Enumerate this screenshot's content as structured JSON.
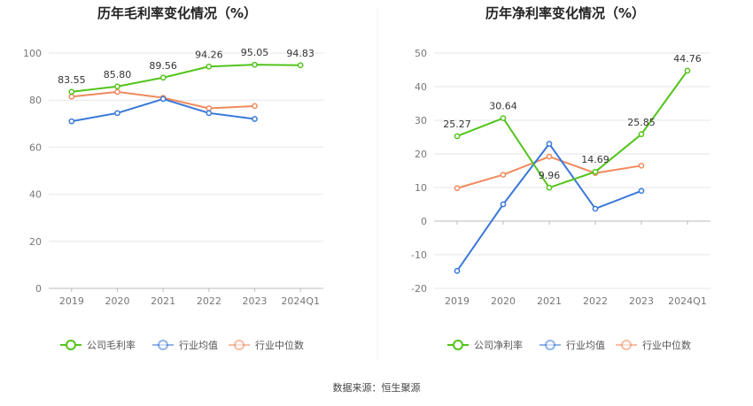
{
  "source": "数据来源：恒生聚源",
  "colors": {
    "company": "#52c41a",
    "avg": "#3a78d8",
    "median": "#f08a5d",
    "grid": "#e6e6ef",
    "axis": "#bbbbbb"
  },
  "chart_data": [
    {
      "type": "line",
      "title": "历年毛利率变化情况（%）",
      "categories": [
        "2019",
        "2020",
        "2021",
        "2022",
        "2023",
        "2024Q1"
      ],
      "ylim": [
        0,
        100
      ],
      "yticks": [
        "0",
        "20",
        "40",
        "60",
        "80",
        "100"
      ],
      "grid": true,
      "legend_position": "bottom",
      "series": [
        {
          "name": "公司毛利率",
          "key": "company",
          "values": [
            83.55,
            85.8,
            89.56,
            94.26,
            95.05,
            94.83
          ],
          "labels": [
            "83.55",
            "85.80",
            "89.56",
            "94.26",
            "95.05",
            "94.83"
          ]
        },
        {
          "name": "行业均值",
          "key": "avg",
          "values": [
            71.0,
            74.5,
            80.5,
            74.5,
            72.0,
            null
          ]
        },
        {
          "name": "行业中位数",
          "key": "median",
          "values": [
            81.5,
            83.5,
            81.0,
            76.5,
            77.5,
            null
          ]
        }
      ]
    },
    {
      "type": "line",
      "title": "历年净利率变化情况（%）",
      "categories": [
        "2019",
        "2020",
        "2021",
        "2022",
        "2023",
        "2024Q1"
      ],
      "ylim": [
        -20,
        50
      ],
      "yticks": [
        "-20",
        "-10",
        "0",
        "10",
        "20",
        "30",
        "40",
        "50"
      ],
      "grid": true,
      "legend_position": "bottom",
      "series": [
        {
          "name": "公司净利率",
          "key": "company",
          "values": [
            25.27,
            30.64,
            9.96,
            14.69,
            25.85,
            44.76
          ],
          "labels": [
            "25.27",
            "30.64",
            "9.96",
            "14.69",
            "25.85",
            "44.76"
          ]
        },
        {
          "name": "行业均值",
          "key": "avg",
          "values": [
            -14.8,
            5.0,
            23.0,
            3.7,
            9.0,
            null
          ]
        },
        {
          "name": "行业中位数",
          "key": "median",
          "values": [
            9.8,
            13.8,
            19.2,
            14.3,
            16.5,
            null
          ]
        }
      ]
    }
  ]
}
